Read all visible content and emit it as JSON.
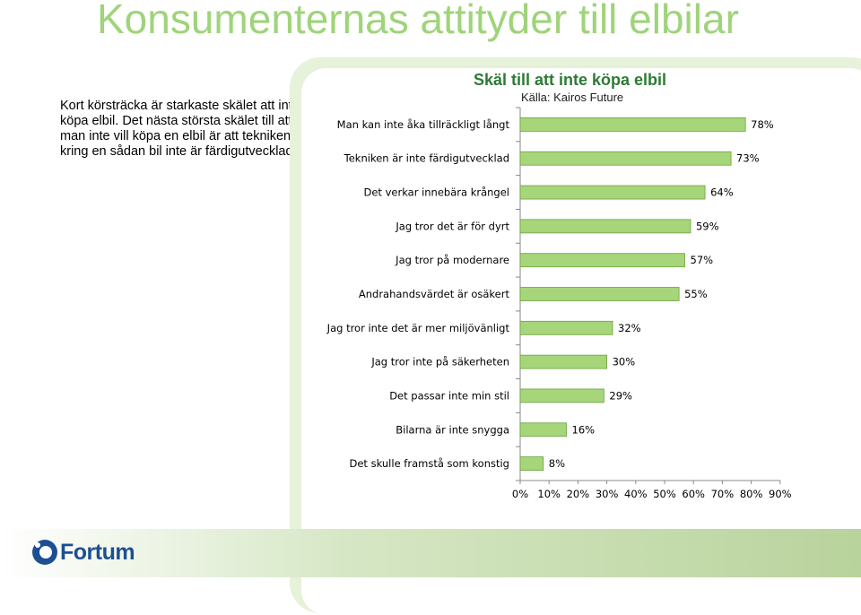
{
  "slide": {
    "title": "Konsumenternas attityder till elbilar",
    "intro": "Kort körsträcka är starkaste skälet att inte köpa elbil. Det nästa största skälet till att man inte vill köpa en elbil är att tekniken kring en sådan bil inte  är färdigutvecklad.",
    "logo_text": "Fortum"
  },
  "colors": {
    "bar_fill": "#a6d57a",
    "bar_stroke": "#6aa33f",
    "title_green": "#9fd47a",
    "chart_title_green": "#2d7a35",
    "logo_blue": "#1d4f91"
  },
  "chart_data": {
    "type": "bar",
    "orientation": "horizontal",
    "title": "Skäl till att inte köpa elbil",
    "subtitle": "Källa: Kairos Future",
    "categories": [
      "Man kan inte åka tillräckligt långt",
      "Tekniken är inte färdigutvecklad",
      "Det verkar innebära krångel",
      "Jag tror det är för dyrt",
      "Jag tror på modernare",
      "Andrahandsvärdet är osäkert",
      "Jag tror inte det är mer miljövänligt",
      "Jag tror inte på säkerheten",
      "Det passar inte min stil",
      "Bilarna är inte snygga",
      "Det skulle framstå som konstig"
    ],
    "values": [
      78,
      73,
      64,
      59,
      57,
      55,
      32,
      30,
      29,
      16,
      8
    ],
    "value_labels": [
      "78%",
      "73%",
      "64%",
      "59%",
      "57%",
      "55%",
      "32%",
      "30%",
      "29%",
      "16%",
      "8%"
    ],
    "xlim": [
      0,
      90
    ],
    "x_ticks": [
      "0%",
      "10%",
      "20%",
      "30%",
      "40%",
      "50%",
      "60%",
      "70%",
      "80%",
      "90%"
    ],
    "grid": false,
    "legend": "none"
  }
}
